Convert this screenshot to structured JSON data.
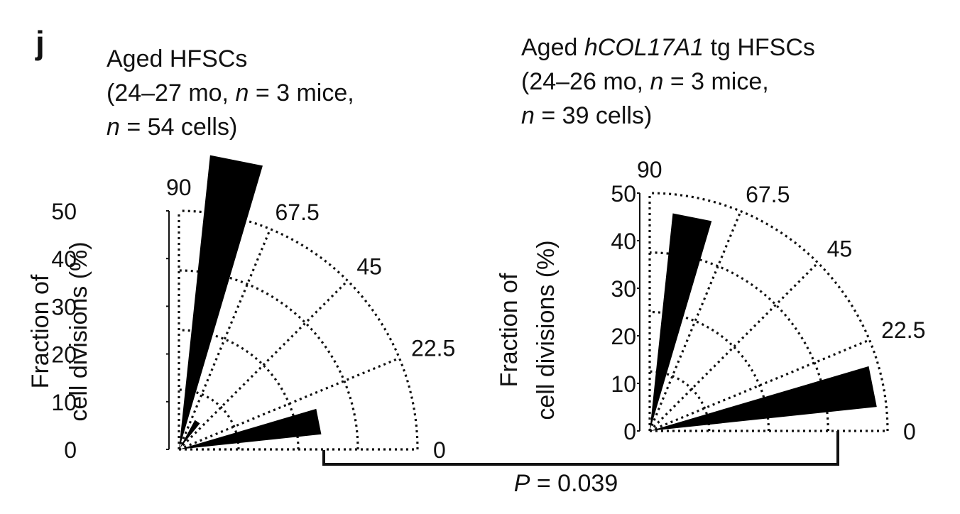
{
  "panel_label": "j",
  "chart_data": [
    {
      "type": "polar-histogram",
      "title_lines": [
        [
          {
            "t": "Aged HFSCs",
            "i": false
          }
        ],
        [
          {
            "t": "(24–27 mo, ",
            "i": false
          },
          {
            "t": "n",
            "i": true
          },
          {
            "t": " = 3 mice,",
            "i": false
          }
        ],
        [
          {
            "t": "n",
            "i": true
          },
          {
            "t": " = 54 cells)",
            "i": false
          }
        ]
      ],
      "ylabel_lines": [
        "Fraction of",
        "cell divisions (%)"
      ],
      "radial_ticks": [
        "0",
        "10",
        "20",
        "30",
        "40",
        "50"
      ],
      "rlim": [
        0,
        50
      ],
      "angle_labels": [
        "90",
        "67.5",
        "45",
        "22.5",
        "0"
      ],
      "bins": [
        {
          "angle_range": [
            0,
            22.5
          ],
          "value": 30
        },
        {
          "angle_range": [
            22.5,
            45
          ],
          "value": 0
        },
        {
          "angle_range": [
            45,
            67.5
          ],
          "value": 7
        },
        {
          "angle_range": [
            67.5,
            90
          ],
          "value": 62
        }
      ]
    },
    {
      "type": "polar-histogram",
      "title_lines": [
        [
          {
            "t": "Aged ",
            "i": false
          },
          {
            "t": "hCOL17A1",
            "i": true
          },
          {
            "t": " tg HFSCs",
            "i": false
          }
        ],
        [
          {
            "t": " (24–26 mo, ",
            "i": false
          },
          {
            "t": "n",
            "i": true
          },
          {
            "t": " = 3 mice,",
            "i": false
          }
        ],
        [
          {
            "t": "n",
            "i": true
          },
          {
            "t": " = 39 cells)",
            "i": false
          }
        ]
      ],
      "ylabel_lines": [
        "Fraction of",
        "cell divisions (%)"
      ],
      "radial_ticks": [
        "0",
        "10",
        "20",
        "30",
        "40",
        "50"
      ],
      "rlim": [
        0,
        50
      ],
      "angle_labels": [
        "90",
        "67.5",
        "45",
        "22.5",
        "0"
      ],
      "bins": [
        {
          "angle_range": [
            0,
            22.5
          ],
          "value": 48
        },
        {
          "angle_range": [
            22.5,
            45
          ],
          "value": 0
        },
        {
          "angle_range": [
            45,
            67.5
          ],
          "value": 0
        },
        {
          "angle_range": [
            67.5,
            90
          ],
          "value": 46
        }
      ]
    }
  ],
  "comparison": {
    "label_parts": [
      {
        "t": "P",
        "i": true
      },
      {
        "t": " = 0.039",
        "i": false
      }
    ]
  }
}
